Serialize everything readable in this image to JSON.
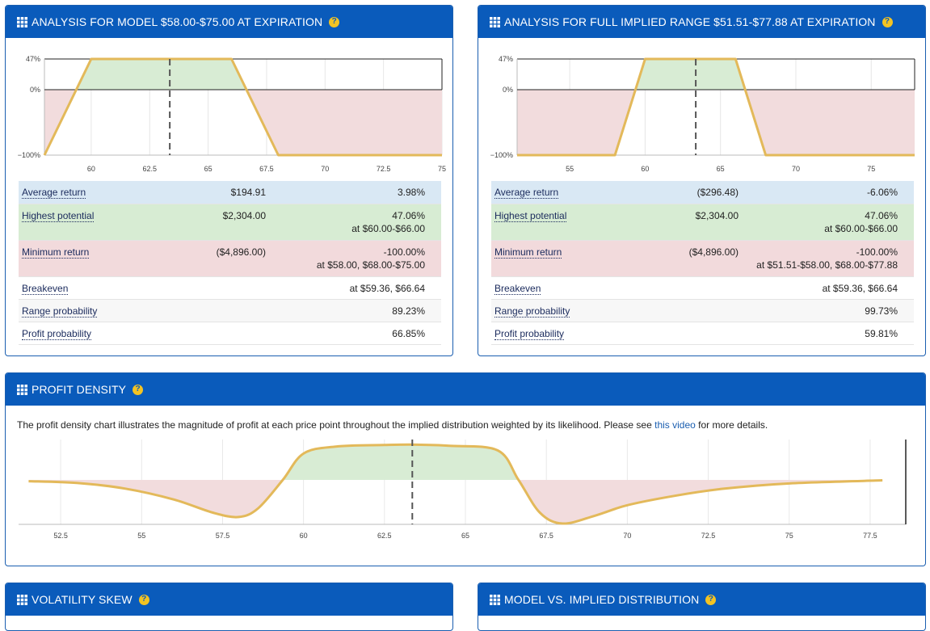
{
  "panels": {
    "model": {
      "title": "ANALYSIS FOR MODEL $58.00-$75.00 AT EXPIRATION",
      "chart_data": {
        "type": "area",
        "y_ticks": [
          "47%",
          "0%",
          "−100%"
        ],
        "y_values": [
          47,
          0,
          -100
        ],
        "x_ticks": [
          "60",
          "62.5",
          "65",
          "67.5",
          "70",
          "72.5",
          "75"
        ],
        "x_tick_values": [
          60,
          62.5,
          65,
          67.5,
          70,
          72.5,
          75
        ],
        "xlim": [
          58,
          75
        ],
        "ylim": [
          -100,
          47
        ],
        "points": [
          [
            58,
            -100
          ],
          [
            60,
            47
          ],
          [
            66,
            47
          ],
          [
            68,
            -100
          ],
          [
            75,
            -100
          ]
        ],
        "marker": 63.36
      },
      "stats": [
        {
          "label": "Average return",
          "amount": "$194.91",
          "pct": "3.98%",
          "sub": ""
        },
        {
          "label": "Highest potential",
          "amount": "$2,304.00",
          "pct": "47.06%",
          "sub": "at $60.00-$66.00"
        },
        {
          "label": "Minimum return",
          "amount": "($4,896.00)",
          "pct": "-100.00%",
          "sub": "at $58.00, $68.00-$75.00"
        },
        {
          "label": "Breakeven",
          "amount": "",
          "pct": "at $59.36, $66.64",
          "sub": ""
        },
        {
          "label": "Range probability",
          "amount": "",
          "pct": "89.23%",
          "sub": ""
        },
        {
          "label": "Profit probability",
          "amount": "",
          "pct": "66.85%",
          "sub": ""
        }
      ]
    },
    "implied": {
      "title": "ANALYSIS FOR FULL IMPLIED RANGE $51.51-$77.88 AT EXPIRATION",
      "chart_data": {
        "type": "area",
        "y_ticks": [
          "47%",
          "0%",
          "−100%"
        ],
        "y_values": [
          47,
          0,
          -100
        ],
        "x_ticks": [
          "55",
          "60",
          "65",
          "70",
          "75"
        ],
        "x_tick_values": [
          55,
          60,
          65,
          70,
          75
        ],
        "xlim": [
          51.51,
          77.88
        ],
        "ylim": [
          -100,
          47
        ],
        "points": [
          [
            51.51,
            -100
          ],
          [
            58,
            -100
          ],
          [
            60,
            47
          ],
          [
            66,
            47
          ],
          [
            68,
            -100
          ],
          [
            77.88,
            -100
          ]
        ],
        "marker": 63.36
      },
      "stats": [
        {
          "label": "Average return",
          "amount": "($296.48)",
          "pct": "-6.06%",
          "sub": ""
        },
        {
          "label": "Highest potential",
          "amount": "$2,304.00",
          "pct": "47.06%",
          "sub": "at $60.00-$66.00"
        },
        {
          "label": "Minimum return",
          "amount": "($4,896.00)",
          "pct": "-100.00%",
          "sub": "at $51.51-$58.00, $68.00-$77.88"
        },
        {
          "label": "Breakeven",
          "amount": "",
          "pct": "at $59.36, $66.64",
          "sub": ""
        },
        {
          "label": "Range probability",
          "amount": "",
          "pct": "99.73%",
          "sub": ""
        },
        {
          "label": "Profit probability",
          "amount": "",
          "pct": "59.81%",
          "sub": ""
        }
      ]
    },
    "density": {
      "title": "PROFIT DENSITY",
      "desc_before": "The profit density chart illustrates the magnitude of profit at each price point throughout the implied distribution weighted by its likelihood. Please see ",
      "desc_link": "this video",
      "desc_after": " for more details.",
      "chart_data": {
        "type": "area",
        "x_ticks": [
          "52.5",
          "55",
          "57.5",
          "60",
          "62.5",
          "65",
          "67.5",
          "70",
          "72.5",
          "75",
          "77.5"
        ],
        "x_tick_values": [
          52.5,
          55,
          57.5,
          60,
          62.5,
          65,
          67.5,
          70,
          72.5,
          75,
          77.5
        ],
        "xlim": [
          51.2,
          78.6
        ],
        "ylim": [
          -1.0,
          1.0
        ],
        "points": [
          [
            51.51,
            -0.03
          ],
          [
            53,
            -0.07
          ],
          [
            54.5,
            -0.2
          ],
          [
            56,
            -0.45
          ],
          [
            57.2,
            -0.75
          ],
          [
            58,
            -0.85
          ],
          [
            58.6,
            -0.65
          ],
          [
            59.36,
            0
          ],
          [
            60,
            0.68
          ],
          [
            61,
            0.86
          ],
          [
            62.5,
            0.9
          ],
          [
            63.4,
            0.91
          ],
          [
            64.5,
            0.88
          ],
          [
            66,
            0.76
          ],
          [
            66.64,
            0
          ],
          [
            67.3,
            -0.75
          ],
          [
            68,
            -1.0
          ],
          [
            69,
            -0.82
          ],
          [
            70,
            -0.58
          ],
          [
            71.5,
            -0.36
          ],
          [
            73,
            -0.2
          ],
          [
            75,
            -0.08
          ],
          [
            77.88,
            -0.01
          ]
        ],
        "marker": 63.36
      }
    },
    "skew": {
      "title": "VOLATILITY SKEW"
    },
    "distribution": {
      "title": "MODEL VS. IMPLIED DISTRIBUTION"
    }
  },
  "colors": {
    "header": "#0a5bbb",
    "profit_fill": "#d8ecd4",
    "loss_fill": "#f2dcdd",
    "line": "#e3b95a",
    "help": "#f3c323"
  },
  "icons": {
    "grid": "grid-icon",
    "help": "help-icon"
  }
}
